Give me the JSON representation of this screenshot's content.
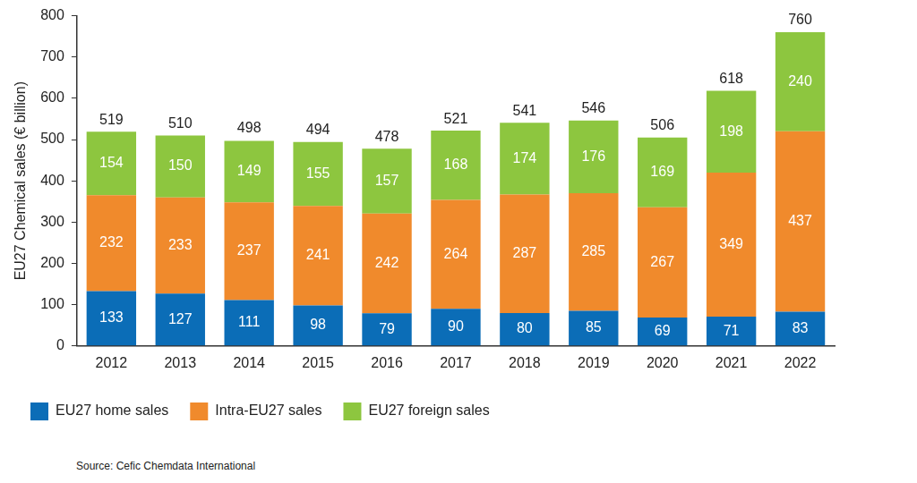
{
  "chart_data": {
    "type": "bar",
    "y_label": "EU27 Chemical sales (€ billion)",
    "categories": [
      "2012",
      "2013",
      "2014",
      "2015",
      "2016",
      "2017",
      "2018",
      "2019",
      "2020",
      "2021",
      "2022"
    ],
    "series": [
      {
        "name": "EU27 home sales",
        "color": "#0b6db7",
        "values": [
          133,
          127,
          111,
          98,
          79,
          90,
          80,
          85,
          69,
          71,
          83
        ]
      },
      {
        "name": "Intra-EU27 sales",
        "color": "#f08a2c",
        "values": [
          232,
          233,
          237,
          241,
          242,
          264,
          287,
          285,
          267,
          349,
          437
        ]
      },
      {
        "name": "EU27 foreign sales",
        "color": "#8dc63f",
        "values": [
          154,
          150,
          149,
          155,
          157,
          168,
          174,
          176,
          169,
          198,
          240
        ]
      }
    ],
    "totals": [
      519,
      510,
      498,
      494,
      478,
      521,
      541,
      546,
      506,
      618,
      760
    ],
    "source": "Source: Cefic Chemdata International",
    "ylim": [
      0,
      800
    ],
    "yticks": [
      0,
      100,
      200,
      300,
      400,
      500,
      600,
      700,
      800
    ],
    "stacked": true,
    "data_labels": true,
    "grid": false,
    "legend": "bottom"
  }
}
